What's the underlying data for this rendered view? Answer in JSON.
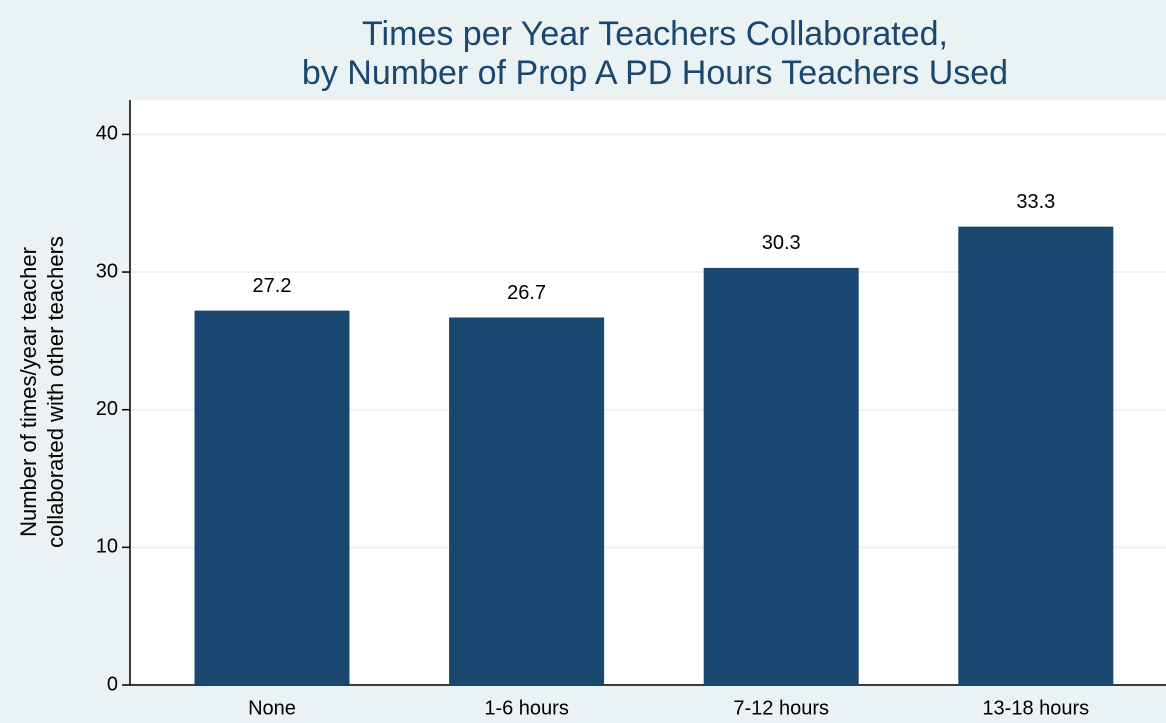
{
  "chart_data": {
    "type": "bar",
    "title": [
      "Times per Year Teachers Collaborated,",
      "by Number of Prop A PD Hours Teachers Used"
    ],
    "y_label": [
      "Number of times/year teacher",
      "collaborated with other teachers"
    ],
    "categories": [
      "None",
      "1-6 hours",
      "7-12 hours",
      "13-18 hours"
    ],
    "values": [
      27.2,
      26.7,
      30.3,
      33.3
    ],
    "value_labels": [
      "27.2",
      "26.7",
      "30.3",
      "33.3"
    ],
    "color": "#1a476f",
    "ylim": [
      0,
      42.5
    ],
    "yticks": [
      0,
      10,
      20,
      30,
      40
    ],
    "grid": true
  }
}
